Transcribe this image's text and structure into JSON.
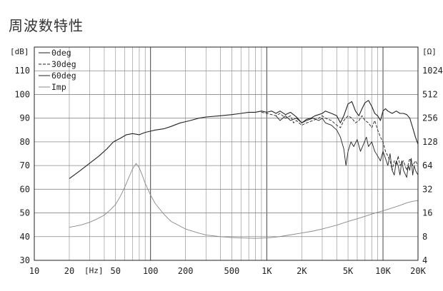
{
  "title": "周波数特性",
  "chart_data": {
    "type": "line",
    "xscale": "log",
    "xlim": [
      10,
      20000
    ],
    "ylim": [
      30,
      120
    ],
    "y2scale": "log",
    "y2lim": [
      4,
      2048
    ],
    "ylabel": "[dB]",
    "y2label": "[Ω]",
    "xunit": "[Hz]",
    "x_ticks": [
      {
        "v": 10,
        "label": "10"
      },
      {
        "v": 20,
        "label": "20"
      },
      {
        "v": 50,
        "label": "50"
      },
      {
        "v": 100,
        "label": "100"
      },
      {
        "v": 200,
        "label": "200"
      },
      {
        "v": 500,
        "label": "500"
      },
      {
        "v": 1000,
        "label": "1K"
      },
      {
        "v": 2000,
        "label": "2K"
      },
      {
        "v": 5000,
        "label": "5K"
      },
      {
        "v": 10000,
        "label": "10K"
      },
      {
        "v": 20000,
        "label": "20K"
      }
    ],
    "y_ticks": [
      {
        "v": 30,
        "label": "30"
      },
      {
        "v": 40,
        "label": "40"
      },
      {
        "v": 50,
        "label": "50"
      },
      {
        "v": 60,
        "label": "60"
      },
      {
        "v": 70,
        "label": "70"
      },
      {
        "v": 80,
        "label": "80"
      },
      {
        "v": 90,
        "label": "90"
      },
      {
        "v": 100,
        "label": "100"
      },
      {
        "v": 110,
        "label": "110"
      }
    ],
    "y2_ticks": [
      {
        "v": 4,
        "label": "4"
      },
      {
        "v": 8,
        "label": "8"
      },
      {
        "v": 16,
        "label": "16"
      },
      {
        "v": 32,
        "label": "32"
      },
      {
        "v": 64,
        "label": "64"
      },
      {
        "v": 128,
        "label": "128"
      },
      {
        "v": 256,
        "label": "256"
      },
      {
        "v": 512,
        "label": "512"
      },
      {
        "v": 1024,
        "label": "1024"
      }
    ],
    "grid": true,
    "legend_position": "top-left",
    "series": [
      {
        "name": "0deg",
        "axis": "left",
        "dash": "none",
        "points": [
          [
            20,
            64.5
          ],
          [
            25,
            68
          ],
          [
            30,
            71
          ],
          [
            36,
            74
          ],
          [
            42,
            77
          ],
          [
            48,
            80
          ],
          [
            55,
            81.5
          ],
          [
            62,
            83
          ],
          [
            70,
            83.5
          ],
          [
            80,
            83
          ],
          [
            90,
            84
          ],
          [
            100,
            84.5
          ],
          [
            110,
            85
          ],
          [
            130,
            85.5
          ],
          [
            150,
            86.5
          ],
          [
            180,
            88
          ],
          [
            220,
            89
          ],
          [
            260,
            90
          ],
          [
            300,
            90.5
          ],
          [
            400,
            91
          ],
          [
            500,
            91.5
          ],
          [
            600,
            92
          ],
          [
            700,
            92.5
          ],
          [
            800,
            92.5
          ],
          [
            900,
            93
          ],
          [
            1000,
            92.5
          ],
          [
            1100,
            93
          ],
          [
            1200,
            92
          ],
          [
            1300,
            93
          ],
          [
            1450,
            91.5
          ],
          [
            1600,
            92.5
          ],
          [
            1800,
            90.5
          ],
          [
            2000,
            88
          ],
          [
            2200,
            89.5
          ],
          [
            2400,
            90
          ],
          [
            2600,
            91
          ],
          [
            2800,
            91.5
          ],
          [
            3000,
            92
          ],
          [
            3200,
            93
          ],
          [
            3600,
            92
          ],
          [
            4000,
            91
          ],
          [
            4300,
            88
          ],
          [
            4600,
            91
          ],
          [
            5000,
            96
          ],
          [
            5400,
            97
          ],
          [
            5800,
            93
          ],
          [
            6200,
            91
          ],
          [
            6600,
            94
          ],
          [
            7000,
            96.5
          ],
          [
            7500,
            97.5
          ],
          [
            8000,
            95
          ],
          [
            8500,
            92
          ],
          [
            9000,
            91
          ],
          [
            9500,
            89
          ],
          [
            10000,
            93
          ],
          [
            10500,
            94
          ],
          [
            11000,
            93
          ],
          [
            12000,
            92
          ],
          [
            13000,
            93
          ],
          [
            14000,
            92
          ],
          [
            15000,
            92
          ],
          [
            16000,
            91.5
          ],
          [
            17000,
            90
          ],
          [
            18000,
            86
          ],
          [
            19000,
            82
          ],
          [
            20000,
            79
          ]
        ]
      },
      {
        "name": "30deg",
        "axis": "left",
        "dash": "4,2",
        "points": [
          [
            900,
            92.5
          ],
          [
            1000,
            92
          ],
          [
            1200,
            91
          ],
          [
            1300,
            92
          ],
          [
            1450,
            90
          ],
          [
            1600,
            91
          ],
          [
            1700,
            88
          ],
          [
            1800,
            89
          ],
          [
            2000,
            87
          ],
          [
            2200,
            88
          ],
          [
            2500,
            89
          ],
          [
            2800,
            90
          ],
          [
            3000,
            91
          ],
          [
            3200,
            90
          ],
          [
            3600,
            89
          ],
          [
            4000,
            87
          ],
          [
            4300,
            86
          ],
          [
            4600,
            89
          ],
          [
            5000,
            91
          ],
          [
            5400,
            90
          ],
          [
            5800,
            88
          ],
          [
            6200,
            89
          ],
          [
            6600,
            91
          ],
          [
            7000,
            89
          ],
          [
            7500,
            88
          ],
          [
            8000,
            86
          ],
          [
            8500,
            89
          ],
          [
            9000,
            85
          ],
          [
            9500,
            82
          ],
          [
            10000,
            80
          ],
          [
            10500,
            76
          ],
          [
            11000,
            74
          ],
          [
            11500,
            72
          ],
          [
            12000,
            68
          ],
          [
            12500,
            72
          ],
          [
            13000,
            70
          ],
          [
            13500,
            74
          ],
          [
            14000,
            70
          ],
          [
            15000,
            72
          ],
          [
            16000,
            68
          ],
          [
            17000,
            73
          ],
          [
            18000,
            70
          ],
          [
            19000,
            72
          ],
          [
            20000,
            70
          ]
        ]
      },
      {
        "name": "60deg",
        "axis": "left",
        "dash": "none",
        "points": [
          [
            1200,
            91
          ],
          [
            1300,
            89
          ],
          [
            1450,
            91
          ],
          [
            1600,
            89
          ],
          [
            1800,
            90
          ],
          [
            2000,
            88
          ],
          [
            2200,
            89
          ],
          [
            2500,
            90
          ],
          [
            2800,
            89
          ],
          [
            3000,
            90
          ],
          [
            3200,
            88
          ],
          [
            3600,
            87
          ],
          [
            4000,
            85
          ],
          [
            4300,
            82
          ],
          [
            4600,
            77
          ],
          [
            4800,
            70
          ],
          [
            5000,
            76
          ],
          [
            5300,
            80
          ],
          [
            5600,
            78
          ],
          [
            6000,
            81
          ],
          [
            6400,
            76
          ],
          [
            6800,
            79
          ],
          [
            7200,
            82
          ],
          [
            7500,
            78
          ],
          [
            8000,
            80
          ],
          [
            8500,
            76
          ],
          [
            9000,
            74
          ],
          [
            9500,
            72
          ],
          [
            10000,
            76
          ],
          [
            10500,
            73
          ],
          [
            11000,
            70
          ],
          [
            11500,
            75
          ],
          [
            12000,
            68
          ],
          [
            12500,
            66
          ],
          [
            13000,
            72
          ],
          [
            13500,
            70
          ],
          [
            14000,
            66
          ],
          [
            14500,
            72
          ],
          [
            15000,
            68
          ],
          [
            16000,
            65
          ],
          [
            16500,
            70
          ],
          [
            17000,
            68
          ],
          [
            17500,
            73
          ],
          [
            18000,
            66
          ],
          [
            18500,
            70
          ],
          [
            19000,
            68
          ],
          [
            20000,
            66
          ]
        ]
      },
      {
        "name": "Imp",
        "axis": "right",
        "dash": "none",
        "points": [
          [
            20,
            10.5
          ],
          [
            25,
            11.2
          ],
          [
            30,
            12.2
          ],
          [
            35,
            13.5
          ],
          [
            40,
            15
          ],
          [
            45,
            17.5
          ],
          [
            50,
            20.5
          ],
          [
            55,
            26
          ],
          [
            60,
            34
          ],
          [
            65,
            45
          ],
          [
            70,
            58
          ],
          [
            75,
            68
          ],
          [
            80,
            60
          ],
          [
            85,
            48
          ],
          [
            90,
            38
          ],
          [
            100,
            27
          ],
          [
            110,
            21
          ],
          [
            130,
            15.5
          ],
          [
            150,
            12.5
          ],
          [
            200,
            10
          ],
          [
            250,
            9
          ],
          [
            300,
            8.4
          ],
          [
            400,
            8
          ],
          [
            500,
            7.8
          ],
          [
            600,
            7.7
          ],
          [
            800,
            7.6
          ],
          [
            1000,
            7.7
          ],
          [
            1200,
            7.9
          ],
          [
            1500,
            8.3
          ],
          [
            2000,
            8.9
          ],
          [
            2500,
            9.4
          ],
          [
            3000,
            10
          ],
          [
            4000,
            11.2
          ],
          [
            5000,
            12.5
          ],
          [
            6000,
            13.5
          ],
          [
            7000,
            14.5
          ],
          [
            8000,
            15.5
          ],
          [
            10000,
            17
          ],
          [
            12000,
            18.5
          ],
          [
            14000,
            20
          ],
          [
            16000,
            21.5
          ],
          [
            18000,
            22.5
          ],
          [
            20000,
            23
          ]
        ]
      }
    ]
  }
}
